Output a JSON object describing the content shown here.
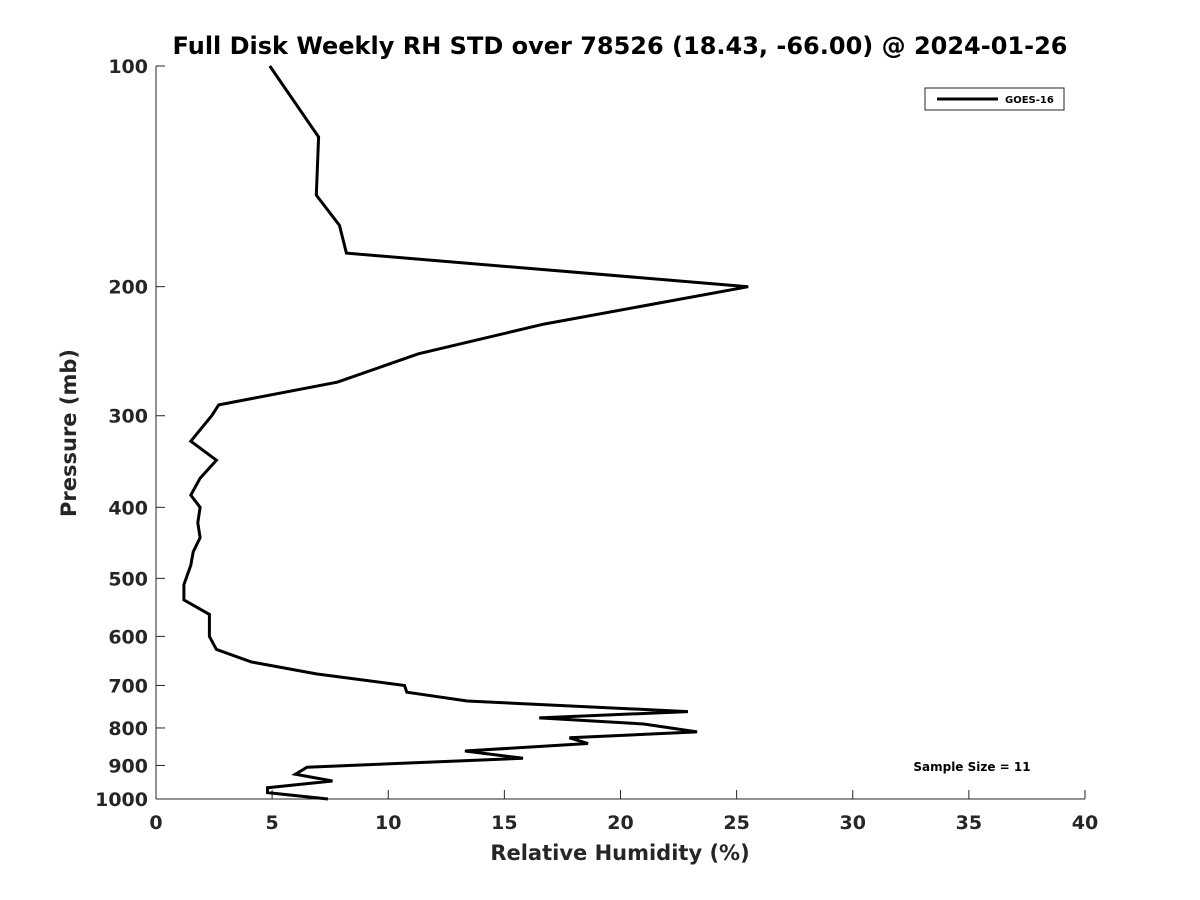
{
  "chart_data": {
    "type": "line",
    "title": "Full Disk Weekly RH STD over 78526 (18.43, -66.00) @ 2024-01-26",
    "xlabel": "Relative Humidity (%)",
    "ylabel": "Pressure (mb)",
    "xlim": [
      0,
      40
    ],
    "ylim": [
      100,
      1000
    ],
    "yscale": "log",
    "y_reversed": true,
    "grid": false,
    "x_ticks": [
      0,
      5,
      10,
      15,
      20,
      25,
      30,
      35,
      40
    ],
    "y_ticks": [
      100,
      200,
      300,
      400,
      500,
      600,
      700,
      800,
      900,
      1000
    ],
    "legend": {
      "position": "top-right",
      "entries": [
        "GOES-16"
      ]
    },
    "annotation": "Sample Size = 11",
    "series": [
      {
        "name": "GOES-16",
        "color": "#000000",
        "x": [
          4.9,
          7.0,
          6.9,
          7.9,
          8.2,
          25.5,
          16.7,
          11.3,
          7.8,
          2.7,
          2.4,
          1.5,
          2.6,
          1.9,
          1.5,
          1.9,
          1.8,
          1.9,
          1.6,
          1.5,
          1.2,
          1.2,
          2.3,
          2.3,
          2.6,
          4.1,
          6.9,
          10.7,
          10.8,
          13.4,
          22.9,
          16.5,
          21.0,
          23.3,
          17.8,
          18.6,
          13.3,
          15.8,
          6.5,
          6.0,
          7.6,
          4.8,
          4.8,
          7.4
        ],
        "y": [
          100,
          125,
          150,
          165,
          180,
          200,
          225,
          247,
          270,
          290,
          300,
          325,
          345,
          365,
          385,
          400,
          420,
          440,
          460,
          480,
          510,
          535,
          560,
          600,
          625,
          650,
          675,
          700,
          715,
          735,
          760,
          775,
          790,
          810,
          825,
          840,
          860,
          880,
          905,
          925,
          945,
          965,
          980,
          1000
        ]
      }
    ]
  }
}
